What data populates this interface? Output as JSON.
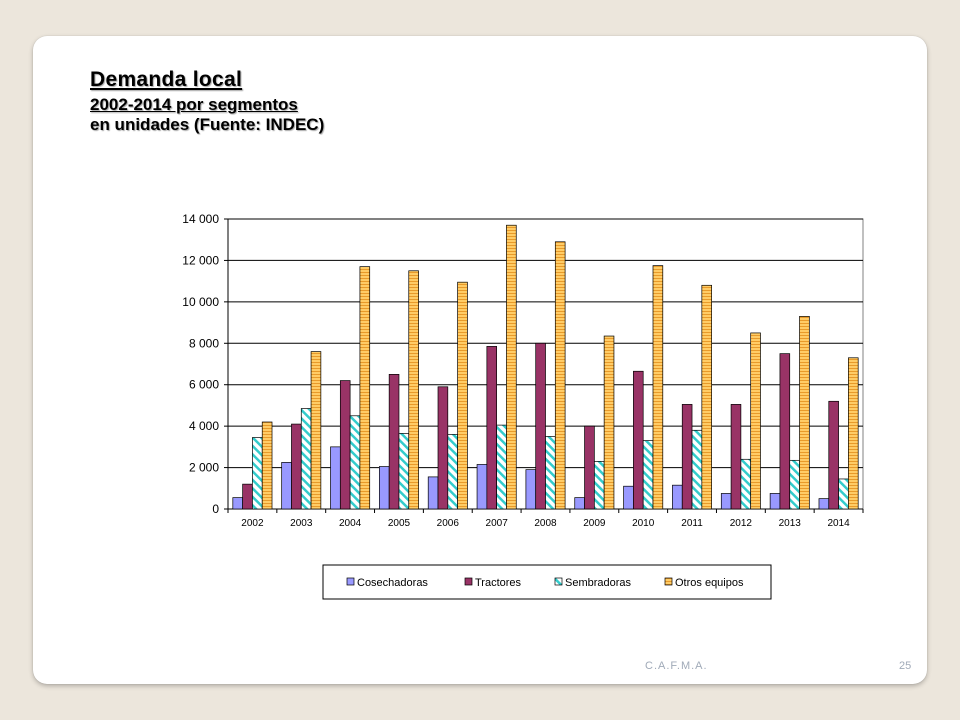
{
  "slide": {
    "title": "Demanda local",
    "subtitle": "2002-2014 por segmentos",
    "subtitle2": "en unidades (Fuente: INDEC)",
    "footer_org": "C.A.F.M.A.",
    "page_number": "25"
  },
  "chart_data": {
    "type": "bar",
    "categories": [
      "2002",
      "2003",
      "2004",
      "2005",
      "2006",
      "2007",
      "2008",
      "2009",
      "2010",
      "2011",
      "2012",
      "2013",
      "2014"
    ],
    "series": [
      {
        "name": "Cosechadoras",
        "color": "#9999ff",
        "pattern": "solid",
        "values": [
          550,
          2250,
          3000,
          2050,
          1550,
          2150,
          1900,
          550,
          1100,
          1150,
          750,
          750,
          500
        ]
      },
      {
        "name": "Tractores",
        "color": "#993366",
        "pattern": "solid",
        "values": [
          1200,
          4100,
          6200,
          6500,
          5900,
          7850,
          8000,
          4000,
          6650,
          5050,
          5050,
          7500,
          5200
        ]
      },
      {
        "name": "Sembradoras",
        "color": "#ccffff",
        "pattern": "diagonal-stripes",
        "values": [
          3450,
          4850,
          4500,
          3650,
          3600,
          4050,
          3500,
          2300,
          3300,
          3800,
          2400,
          2350,
          1450
        ]
      },
      {
        "name": "Otros equipos",
        "color": "#ffcc66",
        "pattern": "horizontal-stripes",
        "values": [
          4200,
          7600,
          11700,
          11500,
          10950,
          13700,
          12900,
          8350,
          11750,
          10800,
          8500,
          9300,
          7300
        ]
      }
    ],
    "yticks": [
      "0",
      "2 000",
      "4 000",
      "6 000",
      "8 000",
      "10 000",
      "12 000",
      "14 000"
    ],
    "ylim": [
      0,
      14000
    ],
    "grid": true,
    "legend_position": "bottom"
  }
}
